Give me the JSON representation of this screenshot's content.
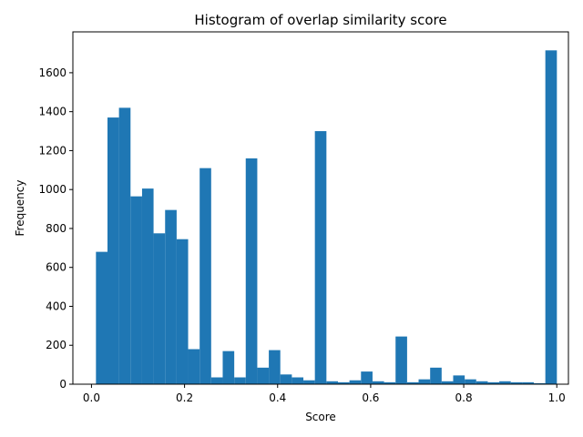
{
  "chart_data": {
    "type": "bar",
    "title": "Histogram of overlap similarity score",
    "xlabel": "Score",
    "ylabel": "Frequency",
    "xlim": [
      -0.04,
      1.025
    ],
    "ylim": [
      0,
      1810
    ],
    "xticks": [
      "0.0",
      "0.2",
      "0.4",
      "0.6",
      "0.8",
      "1.0"
    ],
    "xtick_values": [
      0.0,
      0.2,
      0.4,
      0.6,
      0.8,
      1.0
    ],
    "yticks": [
      "0",
      "200",
      "400",
      "600",
      "800",
      "1000",
      "1200",
      "1400",
      "1600"
    ],
    "ytick_values": [
      0,
      200,
      400,
      600,
      800,
      1000,
      1200,
      1400,
      1600
    ],
    "bar_color": "#1f77b4",
    "grid": false,
    "legend": "none",
    "bin_edges": [
      0.0096,
      0.0344,
      0.0591,
      0.0839,
      0.1087,
      0.1334,
      0.1582,
      0.183,
      0.2077,
      0.2325,
      0.2572,
      0.282,
      0.3068,
      0.3315,
      0.3563,
      0.3811,
      0.4058,
      0.4306,
      0.4554,
      0.4801,
      0.5049,
      0.5297,
      0.5544,
      0.5792,
      0.604,
      0.6287,
      0.6535,
      0.6783,
      0.703,
      0.7278,
      0.7525,
      0.7773,
      0.8021,
      0.8268,
      0.8516,
      0.8764,
      0.9011,
      0.9259,
      0.9507,
      0.9754,
      1.0002
    ],
    "values": [
      680,
      1370,
      1420,
      965,
      1005,
      775,
      895,
      745,
      180,
      1110,
      35,
      170,
      35,
      1160,
      85,
      175,
      50,
      35,
      20,
      1300,
      15,
      10,
      20,
      65,
      15,
      10,
      245,
      10,
      25,
      85,
      15,
      45,
      25,
      15,
      10,
      15,
      10,
      10,
      5,
      1715
    ]
  }
}
